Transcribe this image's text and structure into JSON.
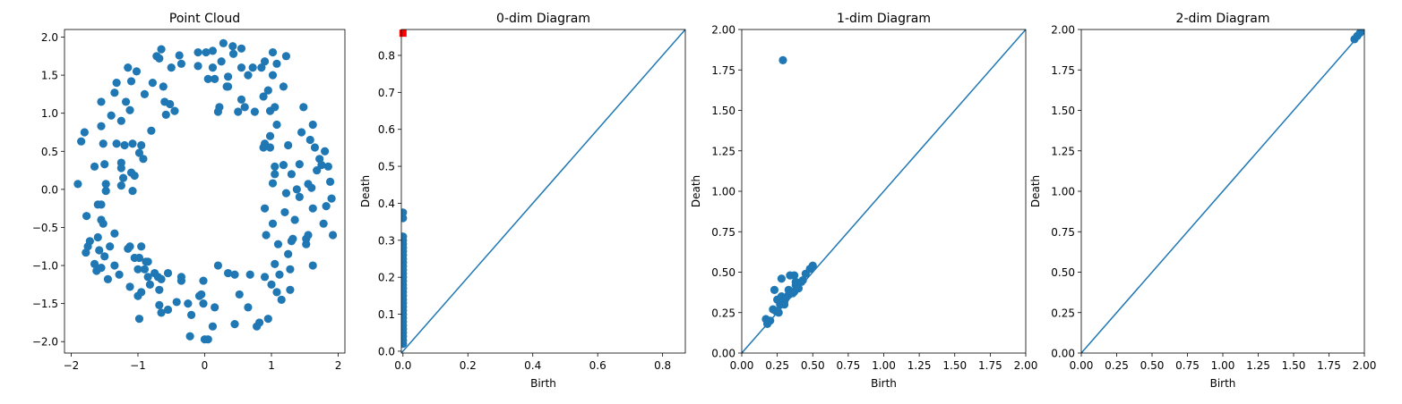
{
  "colors": {
    "points": "#1f77b4",
    "diagonal": "#1f77b4",
    "infinite_marker": "#ff0000",
    "axes": "#000000",
    "background": "#ffffff"
  },
  "chart_data": [
    {
      "type": "scatter",
      "title": "Point Cloud",
      "xlabel": "",
      "ylabel": "",
      "xlim": [
        -2.1,
        2.1
      ],
      "ylim": [
        -2.15,
        2.1
      ],
      "xticks": [
        -2,
        -1,
        0,
        1,
        2
      ],
      "xtick_labels": [
        "−2",
        "−1",
        "0",
        "1",
        "2"
      ],
      "yticks": [
        -2.0,
        -1.5,
        -1.0,
        -0.5,
        0.0,
        0.5,
        1.0,
        1.5,
        2.0
      ],
      "ytick_labels": [
        "−2.0",
        "−1.5",
        "−1.0",
        "−0.5",
        "0.0",
        "0.5",
        "1.0",
        "1.5",
        "2.0"
      ],
      "grid": false,
      "points": [
        [
          -1.9,
          0.07
        ],
        [
          -1.85,
          0.63
        ],
        [
          -1.8,
          0.75
        ],
        [
          -1.77,
          -0.35
        ],
        [
          -1.78,
          -0.83
        ],
        [
          -1.75,
          -0.75
        ],
        [
          -1.72,
          -0.68
        ],
        [
          -1.65,
          0.3
        ],
        [
          -1.65,
          -0.98
        ],
        [
          -1.62,
          -1.07
        ],
        [
          -1.6,
          -0.2
        ],
        [
          -1.6,
          -0.63
        ],
        [
          -1.58,
          -0.8
        ],
        [
          -1.55,
          -0.4
        ],
        [
          -1.55,
          -0.2
        ],
        [
          -1.55,
          -1.03
        ],
        [
          -1.55,
          0.83
        ],
        [
          -1.55,
          1.15
        ],
        [
          -1.52,
          0.6
        ],
        [
          -1.52,
          -0.45
        ],
        [
          -1.5,
          0.33
        ],
        [
          -1.5,
          -0.88
        ],
        [
          -1.48,
          -0.02
        ],
        [
          -1.48,
          0.07
        ],
        [
          -1.45,
          -1.18
        ],
        [
          -1.42,
          -0.75
        ],
        [
          -1.4,
          0.97
        ],
        [
          -1.35,
          1.27
        ],
        [
          -1.35,
          -1.0
        ],
        [
          -1.35,
          -0.58
        ],
        [
          -1.32,
          0.6
        ],
        [
          -1.32,
          1.4
        ],
        [
          -1.28,
          -1.12
        ],
        [
          -1.25,
          0.35
        ],
        [
          -1.25,
          0.28
        ],
        [
          -1.25,
          0.05
        ],
        [
          -1.25,
          0.9
        ],
        [
          -1.22,
          0.15
        ],
        [
          -1.2,
          0.58
        ],
        [
          -1.18,
          1.15
        ],
        [
          -1.15,
          1.6
        ],
        [
          -1.15,
          -0.78
        ],
        [
          -1.12,
          -1.28
        ],
        [
          -1.12,
          -0.75
        ],
        [
          -1.12,
          1.04
        ],
        [
          -1.1,
          1.42
        ],
        [
          -1.1,
          0.22
        ],
        [
          -1.08,
          -0.02
        ],
        [
          -1.08,
          0.6
        ],
        [
          -1.05,
          -0.9
        ],
        [
          -1.05,
          0.18
        ],
        [
          -1.02,
          1.55
        ],
        [
          -1.0,
          -1.05
        ],
        [
          -1.0,
          -1.4
        ],
        [
          -0.98,
          -0.9
        ],
        [
          -0.98,
          -1.7
        ],
        [
          -0.98,
          0.48
        ],
        [
          -0.95,
          0.58
        ],
        [
          -0.95,
          -0.75
        ],
        [
          -0.95,
          -1.35
        ],
        [
          -0.92,
          0.4
        ],
        [
          -0.9,
          1.25
        ],
        [
          -0.9,
          -1.05
        ],
        [
          -0.88,
          -0.95
        ],
        [
          -0.85,
          -0.95
        ],
        [
          -0.85,
          -1.15
        ],
        [
          -0.82,
          -1.25
        ],
        [
          -0.8,
          0.77
        ],
        [
          -0.78,
          1.4
        ],
        [
          -0.75,
          -1.1
        ],
        [
          -0.72,
          1.75
        ],
        [
          -0.7,
          -1.15
        ],
        [
          -0.68,
          -1.52
        ],
        [
          -0.68,
          -1.32
        ],
        [
          -0.68,
          1.72
        ],
        [
          -0.65,
          -1.18
        ],
        [
          -0.65,
          1.84
        ],
        [
          -0.65,
          -1.62
        ],
        [
          -0.62,
          1.35
        ],
        [
          -0.6,
          1.15
        ],
        [
          -0.58,
          0.98
        ],
        [
          -0.55,
          -1.1
        ],
        [
          -0.55,
          -1.58
        ],
        [
          -0.52,
          1.12
        ],
        [
          -0.5,
          1.6
        ],
        [
          -0.45,
          1.03
        ],
        [
          -0.42,
          -1.48
        ],
        [
          -0.38,
          1.76
        ],
        [
          -0.35,
          -1.15
        ],
        [
          -0.35,
          -1.2
        ],
        [
          -0.35,
          1.65
        ],
        [
          -0.25,
          -1.5
        ],
        [
          -0.22,
          -1.93
        ],
        [
          -0.2,
          -1.65
        ],
        [
          -0.1,
          1.8
        ],
        [
          -0.1,
          1.62
        ],
        [
          -0.08,
          -1.4
        ],
        [
          -0.05,
          -1.38
        ],
        [
          -0.02,
          -1.5
        ],
        [
          -0.02,
          -1.2
        ],
        [
          0.0,
          -1.97
        ],
        [
          0.02,
          1.8
        ],
        [
          0.05,
          1.45
        ],
        [
          0.05,
          -1.97
        ],
        [
          0.12,
          1.6
        ],
        [
          0.12,
          1.82
        ],
        [
          0.15,
          1.45
        ],
        [
          0.12,
          -1.8
        ],
        [
          0.15,
          -1.55
        ],
        [
          0.2,
          1.02
        ],
        [
          0.2,
          -1.0
        ],
        [
          0.22,
          1.08
        ],
        [
          0.25,
          1.68
        ],
        [
          0.28,
          1.92
        ],
        [
          0.33,
          1.35
        ],
        [
          0.35,
          1.48
        ],
        [
          0.35,
          1.35
        ],
        [
          0.35,
          -1.1
        ],
        [
          0.42,
          1.88
        ],
        [
          0.43,
          1.78
        ],
        [
          0.45,
          -1.77
        ],
        [
          0.45,
          -1.12
        ],
        [
          0.5,
          1.02
        ],
        [
          0.52,
          -1.38
        ],
        [
          0.55,
          1.18
        ],
        [
          0.55,
          1.85
        ],
        [
          0.55,
          1.6
        ],
        [
          0.6,
          1.08
        ],
        [
          0.65,
          1.5
        ],
        [
          0.65,
          -1.55
        ],
        [
          0.68,
          -1.12
        ],
        [
          0.72,
          1.6
        ],
        [
          0.75,
          1.02
        ],
        [
          0.78,
          -1.8
        ],
        [
          0.82,
          -1.75
        ],
        [
          0.85,
          1.6
        ],
        [
          0.88,
          1.22
        ],
        [
          0.9,
          1.68
        ],
        [
          0.9,
          -1.15
        ],
        [
          0.88,
          0.55
        ],
        [
          0.9,
          0.6
        ],
        [
          0.9,
          -0.25
        ],
        [
          0.92,
          -0.6
        ],
        [
          0.95,
          -1.7
        ],
        [
          0.95,
          1.3
        ],
        [
          0.98,
          0.7
        ],
        [
          0.98,
          0.55
        ],
        [
          0.98,
          1.03
        ],
        [
          1.0,
          -1.25
        ],
        [
          1.02,
          1.8
        ],
        [
          1.02,
          1.5
        ],
        [
          1.02,
          0.08
        ],
        [
          1.02,
          -0.45
        ],
        [
          1.05,
          0.3
        ],
        [
          1.05,
          0.2
        ],
        [
          1.05,
          -0.98
        ],
        [
          1.05,
          1.08
        ],
        [
          1.08,
          -1.35
        ],
        [
          1.08,
          1.65
        ],
        [
          1.08,
          0.85
        ],
        [
          1.1,
          -0.72
        ],
        [
          1.12,
          -1.12
        ],
        [
          1.15,
          -1.45
        ],
        [
          1.18,
          1.35
        ],
        [
          1.18,
          0.32
        ],
        [
          1.2,
          -0.3
        ],
        [
          1.22,
          1.75
        ],
        [
          1.22,
          -0.05
        ],
        [
          1.25,
          -0.85
        ],
        [
          1.25,
          0.58
        ],
        [
          1.28,
          -1.05
        ],
        [
          1.28,
          -1.32
        ],
        [
          1.3,
          0.2
        ],
        [
          1.3,
          -0.68
        ],
        [
          1.32,
          -0.65
        ],
        [
          1.35,
          -0.4
        ],
        [
          1.38,
          0.0
        ],
        [
          1.42,
          -0.1
        ],
        [
          1.42,
          0.33
        ],
        [
          1.45,
          0.75
        ],
        [
          1.48,
          1.08
        ],
        [
          1.52,
          -0.72
        ],
        [
          1.52,
          -0.65
        ],
        [
          1.55,
          -0.6
        ],
        [
          1.55,
          0.07
        ],
        [
          1.58,
          0.65
        ],
        [
          1.6,
          0.02
        ],
        [
          1.62,
          -1.0
        ],
        [
          1.62,
          -0.25
        ],
        [
          1.62,
          0.85
        ],
        [
          1.65,
          0.55
        ],
        [
          1.68,
          0.25
        ],
        [
          1.72,
          0.4
        ],
        [
          1.75,
          0.32
        ],
        [
          1.78,
          -0.45
        ],
        [
          1.8,
          0.5
        ],
        [
          1.82,
          -0.22
        ],
        [
          1.85,
          0.3
        ],
        [
          1.88,
          0.1
        ],
        [
          1.9,
          -0.12
        ],
        [
          1.92,
          -0.6
        ]
      ]
    },
    {
      "type": "scatter",
      "title": "0-dim Diagram",
      "xlabel": "Birth",
      "ylabel": "Death",
      "xlim": [
        -0.005,
        0.87
      ],
      "ylim": [
        -0.005,
        0.87
      ],
      "xticks": [
        0.0,
        0.2,
        0.4,
        0.6,
        0.8
      ],
      "xtick_labels": [
        "0.0",
        "0.2",
        "0.4",
        "0.6",
        "0.8"
      ],
      "yticks": [
        0.0,
        0.1,
        0.2,
        0.3,
        0.4,
        0.5,
        0.6,
        0.7,
        0.8
      ],
      "ytick_labels": [
        "0.0",
        "0.1",
        "0.2",
        "0.3",
        "0.4",
        "0.5",
        "0.6",
        "0.7",
        "0.8"
      ],
      "diagonal": true,
      "infinite_points": [
        [
          0.0,
          0.86
        ]
      ],
      "points": [
        [
          0,
          0.02
        ],
        [
          0,
          0.03
        ],
        [
          0,
          0.04
        ],
        [
          0,
          0.05
        ],
        [
          0,
          0.06
        ],
        [
          0,
          0.07
        ],
        [
          0,
          0.08
        ],
        [
          0,
          0.09
        ],
        [
          0,
          0.1
        ],
        [
          0,
          0.11
        ],
        [
          0,
          0.12
        ],
        [
          0,
          0.13
        ],
        [
          0,
          0.14
        ],
        [
          0,
          0.15
        ],
        [
          0,
          0.16
        ],
        [
          0,
          0.17
        ],
        [
          0,
          0.18
        ],
        [
          0,
          0.19
        ],
        [
          0,
          0.2
        ],
        [
          0,
          0.21
        ],
        [
          0,
          0.22
        ],
        [
          0,
          0.23
        ],
        [
          0,
          0.24
        ],
        [
          0,
          0.25
        ],
        [
          0,
          0.26
        ],
        [
          0,
          0.27
        ],
        [
          0,
          0.28
        ],
        [
          0,
          0.29
        ],
        [
          0,
          0.3
        ],
        [
          0,
          0.31
        ],
        [
          0,
          0.36
        ],
        [
          0,
          0.375
        ]
      ]
    },
    {
      "type": "scatter",
      "title": "1-dim Diagram",
      "xlabel": "Birth",
      "ylabel": "Death",
      "xlim": [
        0.0,
        2.0
      ],
      "ylim": [
        0.0,
        2.0
      ],
      "xticks": [
        0.0,
        0.25,
        0.5,
        0.75,
        1.0,
        1.25,
        1.5,
        1.75,
        2.0
      ],
      "xtick_labels": [
        "0.00",
        "0.25",
        "0.50",
        "0.75",
        "1.00",
        "1.25",
        "1.50",
        "1.75",
        "2.00"
      ],
      "yticks": [
        0.0,
        0.25,
        0.5,
        0.75,
        1.0,
        1.25,
        1.5,
        1.75,
        2.0
      ],
      "ytick_labels": [
        "0.00",
        "0.25",
        "0.50",
        "0.75",
        "1.00",
        "1.25",
        "1.50",
        "1.75",
        "2.00"
      ],
      "diagonal": true,
      "points": [
        [
          0.29,
          1.81
        ],
        [
          0.17,
          0.21
        ],
        [
          0.18,
          0.18
        ],
        [
          0.2,
          0.2
        ],
        [
          0.22,
          0.27
        ],
        [
          0.23,
          0.39
        ],
        [
          0.24,
          0.26
        ],
        [
          0.25,
          0.33
        ],
        [
          0.26,
          0.25
        ],
        [
          0.27,
          0.3
        ],
        [
          0.28,
          0.46
        ],
        [
          0.28,
          0.35
        ],
        [
          0.3,
          0.32
        ],
        [
          0.3,
          0.3
        ],
        [
          0.31,
          0.34
        ],
        [
          0.33,
          0.36
        ],
        [
          0.33,
          0.39
        ],
        [
          0.34,
          0.48
        ],
        [
          0.35,
          0.37
        ],
        [
          0.36,
          0.37
        ],
        [
          0.37,
          0.38
        ],
        [
          0.37,
          0.48
        ],
        [
          0.38,
          0.42
        ],
        [
          0.38,
          0.44
        ],
        [
          0.4,
          0.4
        ],
        [
          0.42,
          0.44
        ],
        [
          0.43,
          0.45
        ],
        [
          0.45,
          0.49
        ],
        [
          0.48,
          0.52
        ],
        [
          0.5,
          0.54
        ]
      ]
    },
    {
      "type": "scatter",
      "title": "2-dim Diagram",
      "xlabel": "Birth",
      "ylabel": "Death",
      "xlim": [
        0.0,
        2.0
      ],
      "ylim": [
        0.0,
        2.0
      ],
      "xticks": [
        0.0,
        0.25,
        0.5,
        0.75,
        1.0,
        1.25,
        1.5,
        1.75,
        2.0
      ],
      "xtick_labels": [
        "0.00",
        "0.25",
        "0.50",
        "0.75",
        "1.00",
        "1.25",
        "1.50",
        "1.75",
        "2.00"
      ],
      "yticks": [
        0.0,
        0.25,
        0.5,
        0.75,
        1.0,
        1.25,
        1.5,
        1.75,
        2.0
      ],
      "ytick_labels": [
        "0.00",
        "0.25",
        "0.50",
        "0.75",
        "1.00",
        "1.25",
        "1.50",
        "1.75",
        "2.00"
      ],
      "diagonal": true,
      "points": [
        [
          1.93,
          1.94
        ],
        [
          1.95,
          1.96
        ],
        [
          1.97,
          1.98
        ]
      ]
    }
  ]
}
